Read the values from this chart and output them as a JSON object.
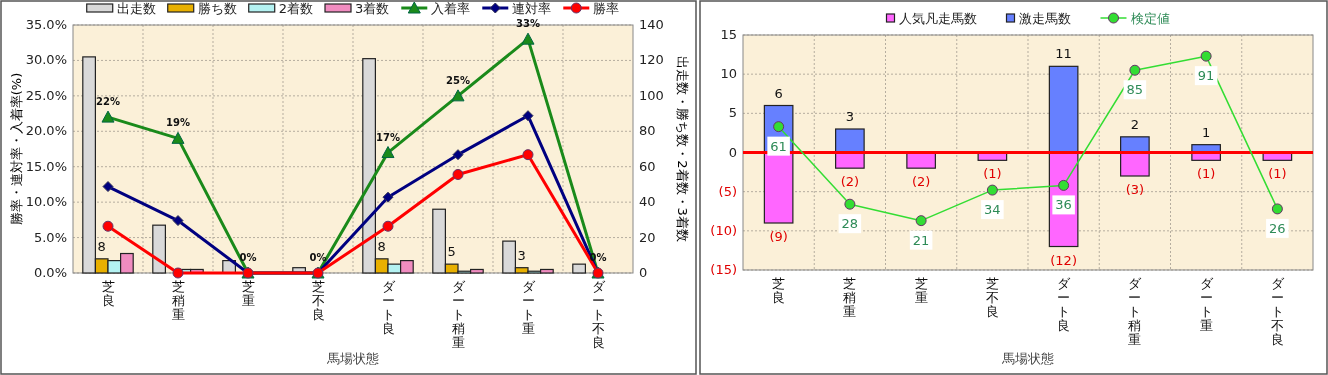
{
  "chart_data": [
    {
      "type": "bar",
      "xlabel": "馬場状態",
      "ylabel": "勝率・連対率・入着率(%)",
      "y2label": "出走数・勝ち数・2着数・3着数",
      "categories": [
        "芝良",
        "芝稍重",
        "芝重",
        "芝不良",
        "ダート良",
        "ダート稍重",
        "ダート重",
        "ダート不良"
      ],
      "ylim": [
        0,
        35
      ],
      "yticks": [
        {
          "value": 0,
          "label": "0.0%"
        },
        {
          "value": 5,
          "label": "5.0%"
        },
        {
          "value": 10,
          "label": "10.0%"
        },
        {
          "value": 15,
          "label": "15.0%"
        },
        {
          "value": 20,
          "label": "20.0%"
        },
        {
          "value": 25,
          "label": "25.0%"
        },
        {
          "value": 30,
          "label": "30.0%"
        },
        {
          "value": 35,
          "label": "35.0%"
        }
      ],
      "y2lim": [
        0,
        140
      ],
      "y2ticks": [
        0,
        20,
        40,
        60,
        80,
        100,
        120,
        140
      ],
      "grid": true,
      "legend": "top",
      "series": [
        {
          "name": "出走数",
          "type": "bar",
          "axis": "y2",
          "color": "#d9d9d9",
          "values": [
            122,
            27,
            7,
            3,
            121,
            36,
            18,
            5
          ]
        },
        {
          "name": "勝ち数",
          "type": "bar",
          "axis": "y2",
          "color": "#e8b000",
          "values": [
            8,
            0,
            0,
            0,
            8,
            5,
            3,
            0
          ],
          "value_labels": [
            "8",
            null,
            null,
            null,
            "8",
            "5",
            "3",
            null
          ]
        },
        {
          "name": "2着数",
          "type": "bar",
          "axis": "y2",
          "color": "#b4f2f2",
          "values": [
            7,
            2,
            0,
            0,
            5,
            1,
            1,
            0
          ]
        },
        {
          "name": "3着数",
          "type": "bar",
          "axis": "y2",
          "color": "#f08cc0",
          "values": [
            11,
            2,
            0,
            0,
            7,
            2,
            2,
            0
          ]
        },
        {
          "name": "入着率",
          "type": "line",
          "axis": "y",
          "color": "#1a8a1a",
          "marker": "triangle",
          "values": [
            22,
            19,
            0,
            0,
            17,
            25,
            33,
            0
          ],
          "value_labels": [
            "22%",
            "19%",
            "0%",
            "0%",
            "17%",
            "25%",
            "33%",
            "0%"
          ]
        },
        {
          "name": "連対率",
          "type": "line",
          "axis": "y",
          "color": "#000080",
          "marker": "diamond",
          "values": [
            12.2,
            7.4,
            0,
            0,
            10.7,
            16.7,
            22.2,
            0
          ]
        },
        {
          "name": "勝率",
          "type": "line",
          "axis": "y",
          "color": "#ff0000",
          "marker": "circle",
          "values": [
            6.6,
            0,
            0,
            0,
            6.6,
            13.9,
            16.7,
            0
          ]
        }
      ]
    },
    {
      "type": "bar",
      "stacked": true,
      "xlabel": "馬場状態",
      "categories": [
        "芝良",
        "芝稍重",
        "芝重",
        "芝不良",
        "ダート良",
        "ダート稍重",
        "ダート重",
        "ダート不良"
      ],
      "ylim": [
        -15,
        15
      ],
      "yticks": [
        {
          "value": -15,
          "label": "(15)"
        },
        {
          "value": -10,
          "label": "(10)"
        },
        {
          "value": -5,
          "label": "(5)"
        },
        0,
        5,
        10,
        15
      ],
      "y2lim": [
        0,
        100
      ],
      "grid": true,
      "legend": "top",
      "ref_lines": [
        {
          "axis": "y",
          "value": 0,
          "color": "#ff0000"
        }
      ],
      "series": [
        {
          "name": "人気凡走馬数",
          "type": "bar",
          "color": "#ff66ff",
          "values": [
            -9,
            -2,
            -2,
            -1,
            -12,
            -3,
            -1,
            -1
          ],
          "value_labels": [
            "(9)",
            "(2)",
            "(2)",
            "(1)",
            "(12)",
            "(3)",
            "(1)",
            "(1)"
          ]
        },
        {
          "name": "激走馬数",
          "type": "bar",
          "color": "#6680ff",
          "values": [
            6,
            3,
            0,
            0,
            11,
            2,
            1,
            0
          ],
          "value_labels": [
            "6",
            "3",
            null,
            null,
            "11",
            "2",
            "1",
            null
          ]
        },
        {
          "name": "検定値",
          "type": "line",
          "axis": "y2",
          "color": "#33dd33",
          "marker": "circle",
          "values": [
            61,
            28,
            21,
            34,
            36,
            85,
            91,
            26
          ],
          "value_labels": [
            "61",
            "28",
            "21",
            "34",
            "36",
            "85",
            "91",
            "26"
          ]
        }
      ]
    }
  ]
}
